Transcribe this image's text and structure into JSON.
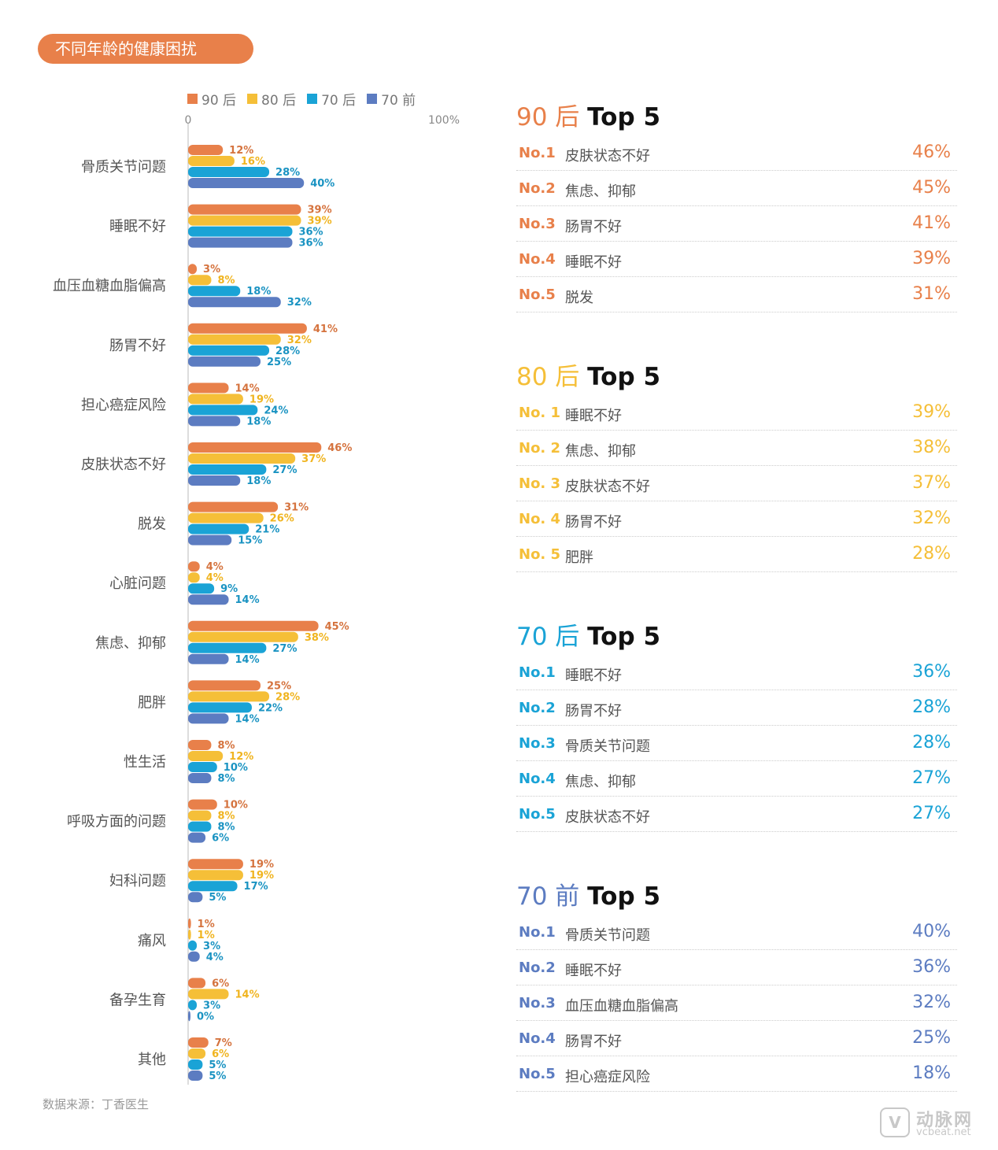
{
  "title": "不同年龄的健康困扰",
  "source": "数据来源：丁香医生",
  "watermark": {
    "logo_letter": "V",
    "name_cn": "动脉网",
    "name_en": "vcbeat.net"
  },
  "colors": {
    "s90": "#e8804a",
    "s80": "#f5bf38",
    "s70": "#1aa3d6",
    "pre70": "#5c7cc1"
  },
  "chart_data": {
    "type": "bar",
    "orientation": "horizontal",
    "xlim": [
      0,
      100
    ],
    "x_tick_labels": [
      "0",
      "100%"
    ],
    "legend_position": "top",
    "grid": false,
    "categories": [
      "骨质关节问题",
      "睡眠不好",
      "血压血糖血脂偏高",
      "肠胃不好",
      "担心癌症风险",
      "皮肤状态不好",
      "脱发",
      "心脏问题",
      "焦虑、抑郁",
      "肥胖",
      "性生活",
      "呼吸方面的问题",
      "妇科问题",
      "痛风",
      "备孕生育",
      "其他"
    ],
    "series": [
      {
        "name": "90 后",
        "color": "#e8804a",
        "label_color": "#d5733e",
        "values": [
          12,
          39,
          3,
          41,
          14,
          46,
          31,
          4,
          45,
          25,
          8,
          10,
          19,
          1,
          6,
          7
        ]
      },
      {
        "name": "80 后",
        "color": "#f5bf38",
        "label_color": "#f0b41f",
        "values": [
          16,
          39,
          8,
          32,
          19,
          37,
          26,
          4,
          38,
          28,
          12,
          8,
          19,
          1,
          14,
          6
        ]
      },
      {
        "name": "70 后",
        "color": "#1aa3d6",
        "label_color": "#1a93c2",
        "values": [
          28,
          36,
          18,
          28,
          24,
          27,
          21,
          9,
          27,
          22,
          10,
          8,
          17,
          3,
          3,
          5
        ]
      },
      {
        "name": "70 前",
        "color": "#5c7cc1",
        "label_color": "#1a93c2",
        "values": [
          40,
          36,
          32,
          25,
          18,
          18,
          15,
          14,
          14,
          14,
          8,
          6,
          5,
          4,
          0,
          5
        ]
      }
    ]
  },
  "panels": [
    {
      "gen": "90 后",
      "top": "Top 5",
      "color": "#e8804a",
      "items": [
        {
          "rank": "No.1",
          "label": "皮肤状态不好",
          "value": "46%"
        },
        {
          "rank": "No.2",
          "label": "焦虑、抑郁",
          "value": "45%"
        },
        {
          "rank": "No.3",
          "label": "肠胃不好",
          "value": "41%"
        },
        {
          "rank": "No.4",
          "label": "睡眠不好",
          "value": "39%"
        },
        {
          "rank": "No.5",
          "label": "脱发",
          "value": "31%"
        }
      ]
    },
    {
      "gen": "80 后",
      "top": "Top 5",
      "color": "#f5bf38",
      "items": [
        {
          "rank": "No. 1",
          "label": "睡眠不好",
          "value": "39%"
        },
        {
          "rank": "No. 2",
          "label": "焦虑、抑郁",
          "value": "38%"
        },
        {
          "rank": "No. 3",
          "label": "皮肤状态不好",
          "value": "37%"
        },
        {
          "rank": "No. 4",
          "label": "肠胃不好",
          "value": "32%"
        },
        {
          "rank": "No. 5",
          "label": "肥胖",
          "value": "28%"
        }
      ]
    },
    {
      "gen": "70 后",
      "top": "Top 5",
      "color": "#1aa3d6",
      "items": [
        {
          "rank": "No.1",
          "label": "睡眠不好",
          "value": "36%"
        },
        {
          "rank": "No.2",
          "label": "肠胃不好",
          "value": "28%"
        },
        {
          "rank": "No.3",
          "label": "骨质关节问题",
          "value": "28%"
        },
        {
          "rank": "No.4",
          "label": "焦虑、抑郁",
          "value": "27%"
        },
        {
          "rank": "No.5",
          "label": "皮肤状态不好",
          "value": "27%"
        }
      ]
    },
    {
      "gen": "70 前",
      "top": "Top 5",
      "color": "#5c7cc1",
      "items": [
        {
          "rank": "No.1",
          "label": "骨质关节问题",
          "value": "40%"
        },
        {
          "rank": "No.2",
          "label": "睡眠不好",
          "value": "36%"
        },
        {
          "rank": "No.3",
          "label": "血压血糖血脂偏高",
          "value": "32%"
        },
        {
          "rank": "No.4",
          "label": "肠胃不好",
          "value": "25%"
        },
        {
          "rank": "No.5",
          "label": "担心癌症风险",
          "value": "18%"
        }
      ]
    }
  ]
}
